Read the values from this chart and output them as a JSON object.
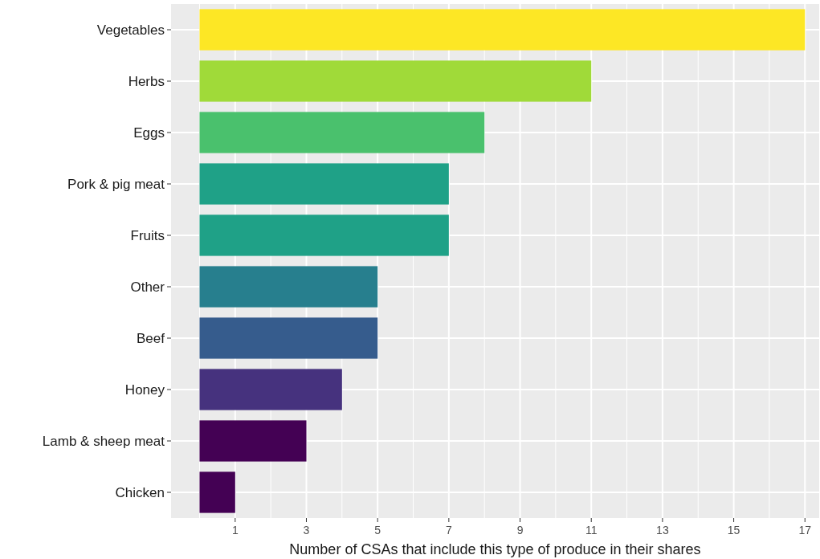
{
  "chart_data": {
    "type": "bar",
    "orientation": "horizontal",
    "xlabel": "Number of CSAs that include this type of produce in their shares",
    "categories": [
      "Vegetables",
      "Herbs",
      "Eggs",
      "Pork & pig meat",
      "Fruits",
      "Other",
      "Beef",
      "Honey",
      "Lamb & sheep meat",
      "Chicken"
    ],
    "values": [
      17,
      11,
      8,
      7,
      7,
      5,
      5,
      4,
      3,
      1
    ],
    "colors": [
      "#fde725",
      "#a0da39",
      "#4ac16d",
      "#1fa187",
      "#1fa187",
      "#277f8e",
      "#365c8d",
      "#46327e",
      "#440154",
      "#440154"
    ],
    "xlim": [
      -0.8,
      17.4
    ],
    "xticks": [
      1,
      3,
      5,
      7,
      9,
      11,
      13,
      15,
      17
    ],
    "grid": true
  }
}
